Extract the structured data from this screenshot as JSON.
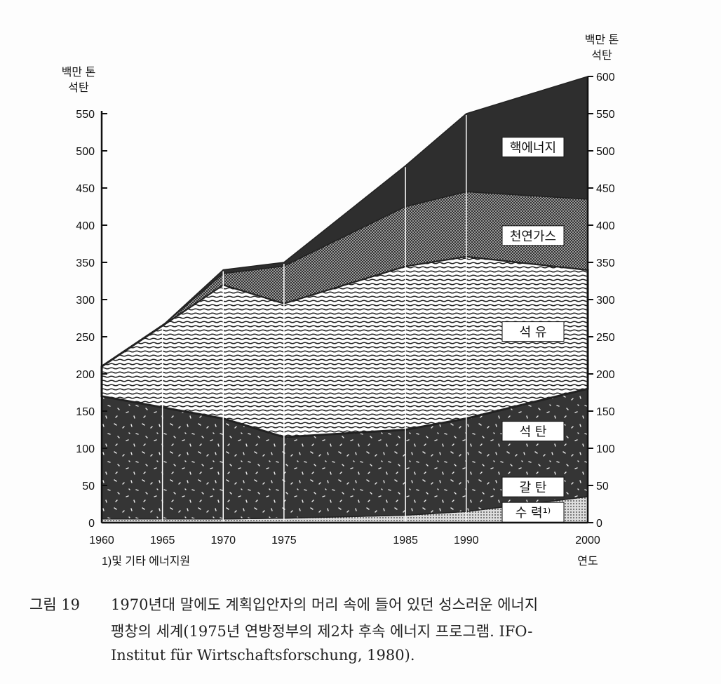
{
  "chart_data": {
    "type": "area",
    "stacked": true,
    "x": [
      1960,
      1965,
      1970,
      1975,
      1985,
      1990,
      2000
    ],
    "series": [
      {
        "name": "수력 (및 기타 에너지원)",
        "values": [
          5,
          5,
          5,
          6,
          10,
          15,
          35
        ]
      },
      {
        "name": "석탄·갈탄",
        "values": [
          165,
          150,
          135,
          109,
          115,
          125,
          145
        ]
      },
      {
        "name": "석유",
        "values": [
          40,
          110,
          180,
          180,
          220,
          218,
          160
        ]
      },
      {
        "name": "천연가스",
        "values": [
          0,
          0,
          15,
          50,
          80,
          87,
          95
        ]
      },
      {
        "name": "핵에너지",
        "values": [
          0,
          0,
          5,
          5,
          55,
          105,
          165
        ]
      }
    ],
    "annotations": [
      "핵에너지",
      "천연가스",
      "석 유",
      "석 탄",
      "갈 탄",
      "수 력¹⁾"
    ],
    "xlabel": "연도",
    "ylabel_left": [
      "백만 톤",
      "석탄"
    ],
    "ylabel_right": [
      "백만 톤",
      "석탄"
    ],
    "ylim_left": [
      0,
      550
    ],
    "ylim_right": [
      0,
      600
    ],
    "yticks_left": [
      0,
      50,
      100,
      150,
      200,
      250,
      300,
      350,
      400,
      450,
      500,
      550
    ],
    "yticks_right": [
      0,
      50,
      100,
      150,
      200,
      250,
      300,
      350,
      400,
      450,
      500,
      550,
      600
    ],
    "xticks": [
      1960,
      1965,
      1970,
      1975,
      1985,
      1990,
      2000
    ],
    "footnote": "1)및 기타 에너지원"
  },
  "colors": {
    "dark": "#353535",
    "nuclear": "#2e2e2e"
  },
  "caption": {
    "label": "그림 19",
    "line1": "1970년대 말에도 계획입안자의 머리 속에 들어 있던 성스러운 에너지",
    "line2": "팽창의 세계(1975년 연방정부의 제2차 후속 에너지 프로그램. IFO-",
    "line3": "Institut für Wirtschaftsforschung, 1980)."
  }
}
